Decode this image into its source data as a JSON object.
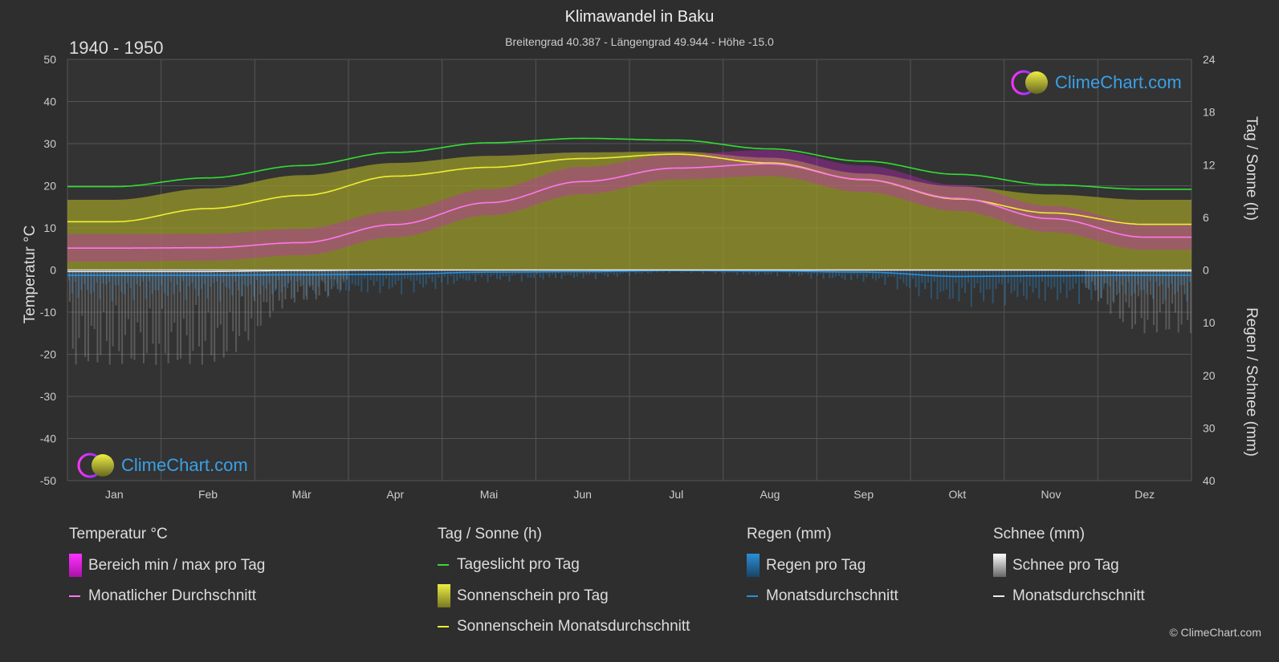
{
  "header": {
    "title": "Klimawandel in Baku",
    "subtitle": "Breitengrad 40.387 - Längengrad 49.944 - Höhe -15.0",
    "period": "1940 - 1950"
  },
  "axes": {
    "left_label": "Temperatur °C",
    "right_top_label": "Tag / Sonne (h)",
    "right_bottom_label": "Regen / Schnee (mm)"
  },
  "logo": {
    "text": "ClimeChart.com"
  },
  "copyright": "© ClimeChart.com",
  "legend": {
    "temperature": {
      "heading": "Temperatur °C",
      "range": "Bereich min / max pro Tag",
      "avg": "Monatlicher Durchschnitt"
    },
    "sun": {
      "heading": "Tag / Sonne (h)",
      "daylight": "Tageslicht pro Tag",
      "sunshine": "Sonnenschein pro Tag",
      "sunshine_avg": "Sonnenschein Monatsdurchschnitt"
    },
    "rain": {
      "heading": "Regen (mm)",
      "per_day": "Regen pro Tag",
      "avg": "Monatsdurchschnitt"
    },
    "snow": {
      "heading": "Schnee (mm)",
      "per_day": "Schnee pro Tag",
      "avg": "Monatsdurchschnitt"
    }
  },
  "colors": {
    "temp_range": "#d020d0",
    "temp_avg": "#ff77ee",
    "daylight": "#33dd33",
    "sunshine_fill": "#9a9a2a",
    "sunshine_avg": "#eeee33",
    "rain": "#2a8fd8",
    "snow": "#bbbbbb"
  },
  "chart_data": {
    "type": "line",
    "categories": [
      "Jan",
      "Feb",
      "Mär",
      "Apr",
      "Mai",
      "Jun",
      "Jul",
      "Aug",
      "Sep",
      "Okt",
      "Nov",
      "Dez"
    ],
    "y_left": {
      "label": "Temperatur °C",
      "min": -50,
      "max": 50,
      "ticks": [
        50,
        40,
        30,
        20,
        10,
        0,
        -10,
        -20,
        -30,
        -40,
        -50
      ]
    },
    "y_right_top": {
      "label": "Tag / Sonne (h)",
      "min": 0,
      "max": 24,
      "ticks": [
        24,
        18,
        12,
        6,
        0
      ]
    },
    "y_right_bottom": {
      "label": "Regen / Schnee (mm)",
      "min": 0,
      "max": 40,
      "ticks": [
        0,
        10,
        20,
        30,
        40
      ]
    },
    "series": [
      {
        "name": "Monatlicher Durchschnitt",
        "unit": "°C",
        "values": [
          5.2,
          5.3,
          6.5,
          10.8,
          16.0,
          21.0,
          24.2,
          25.2,
          21.5,
          17.0,
          12.2,
          7.8
        ]
      },
      {
        "name": "Tageslicht pro Tag",
        "unit": "h",
        "values": [
          9.5,
          10.5,
          11.9,
          13.4,
          14.5,
          15.0,
          14.8,
          13.8,
          12.4,
          10.9,
          9.7,
          9.2
        ]
      },
      {
        "name": "Sonnenschein Monatsdurchschnitt",
        "unit": "h",
        "values": [
          5.5,
          7.0,
          8.5,
          10.7,
          11.7,
          12.7,
          13.2,
          12.2,
          10.3,
          8.1,
          6.5,
          5.2
        ]
      },
      {
        "name": "Sonnenschein pro Tag",
        "unit": "h",
        "values": [
          8.0,
          9.3,
          10.8,
          12.2,
          13.0,
          13.4,
          13.5,
          12.8,
          11.0,
          9.5,
          8.6,
          8.0
        ]
      },
      {
        "name": "Bereich min / max pro Tag",
        "unit": "°C",
        "min": [
          2.0,
          2.2,
          3.5,
          7.8,
          13.0,
          18.0,
          21.5,
          22.3,
          18.5,
          14.0,
          9.0,
          4.8
        ],
        "max": [
          8.5,
          8.6,
          9.8,
          14.0,
          19.2,
          24.5,
          27.5,
          28.5,
          24.8,
          20.2,
          15.2,
          11.0
        ]
      },
      {
        "name": "Regen Monatsdurchschnitt",
        "unit": "mm",
        "values": [
          1.0,
          1.0,
          0.9,
          0.8,
          0.4,
          0.3,
          0.1,
          0.2,
          0.4,
          1.2,
          1.1,
          1.0
        ]
      },
      {
        "name": "Schnee Monatsdurchschnitt",
        "unit": "mm",
        "values": [
          0.3,
          0.3,
          0.1,
          0,
          0,
          0,
          0,
          0,
          0,
          0,
          0,
          0.2
        ]
      }
    ]
  }
}
